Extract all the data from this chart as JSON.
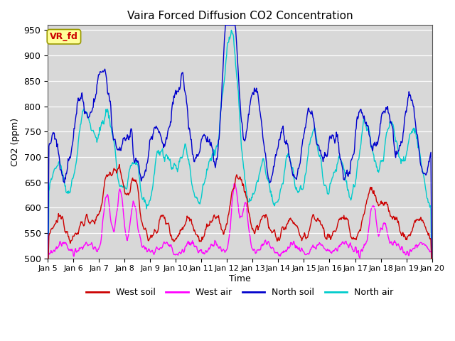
{
  "title": "Vaira Forced Diffusion CO2 Concentration",
  "xlabel": "Time",
  "ylabel": "CO2 (ppm)",
  "ylim": [
    500,
    960
  ],
  "yticks": [
    500,
    550,
    600,
    650,
    700,
    750,
    800,
    850,
    900,
    950
  ],
  "xlim": [
    0,
    360
  ],
  "xtick_positions": [
    0,
    24,
    48,
    72,
    96,
    120,
    144,
    168,
    192,
    216,
    240,
    264,
    288,
    312,
    336,
    360
  ],
  "xtick_labels": [
    "Jan 5",
    "Jan 6",
    "Jan 7",
    "Jan 8",
    "Jan 9",
    "Jan 10",
    "Jan 11",
    "Jan 12",
    "Jan 13",
    "Jan 14",
    "Jan 15",
    "Jan 16",
    "Jan 17",
    "Jan 18",
    "Jan 19",
    "Jan 20"
  ],
  "colors": {
    "west_soil": "#cc0000",
    "west_air": "#ff00ff",
    "north_soil": "#0000cc",
    "north_air": "#00cccc"
  },
  "legend_label_bg": "#ffff99",
  "legend_label_border": "#999900",
  "legend_label_text": "#cc0000",
  "legend_label": "VR_fd",
  "bg_color": "#d8d8d8",
  "grid_color": "#ffffff",
  "series_linewidth": 1.0
}
